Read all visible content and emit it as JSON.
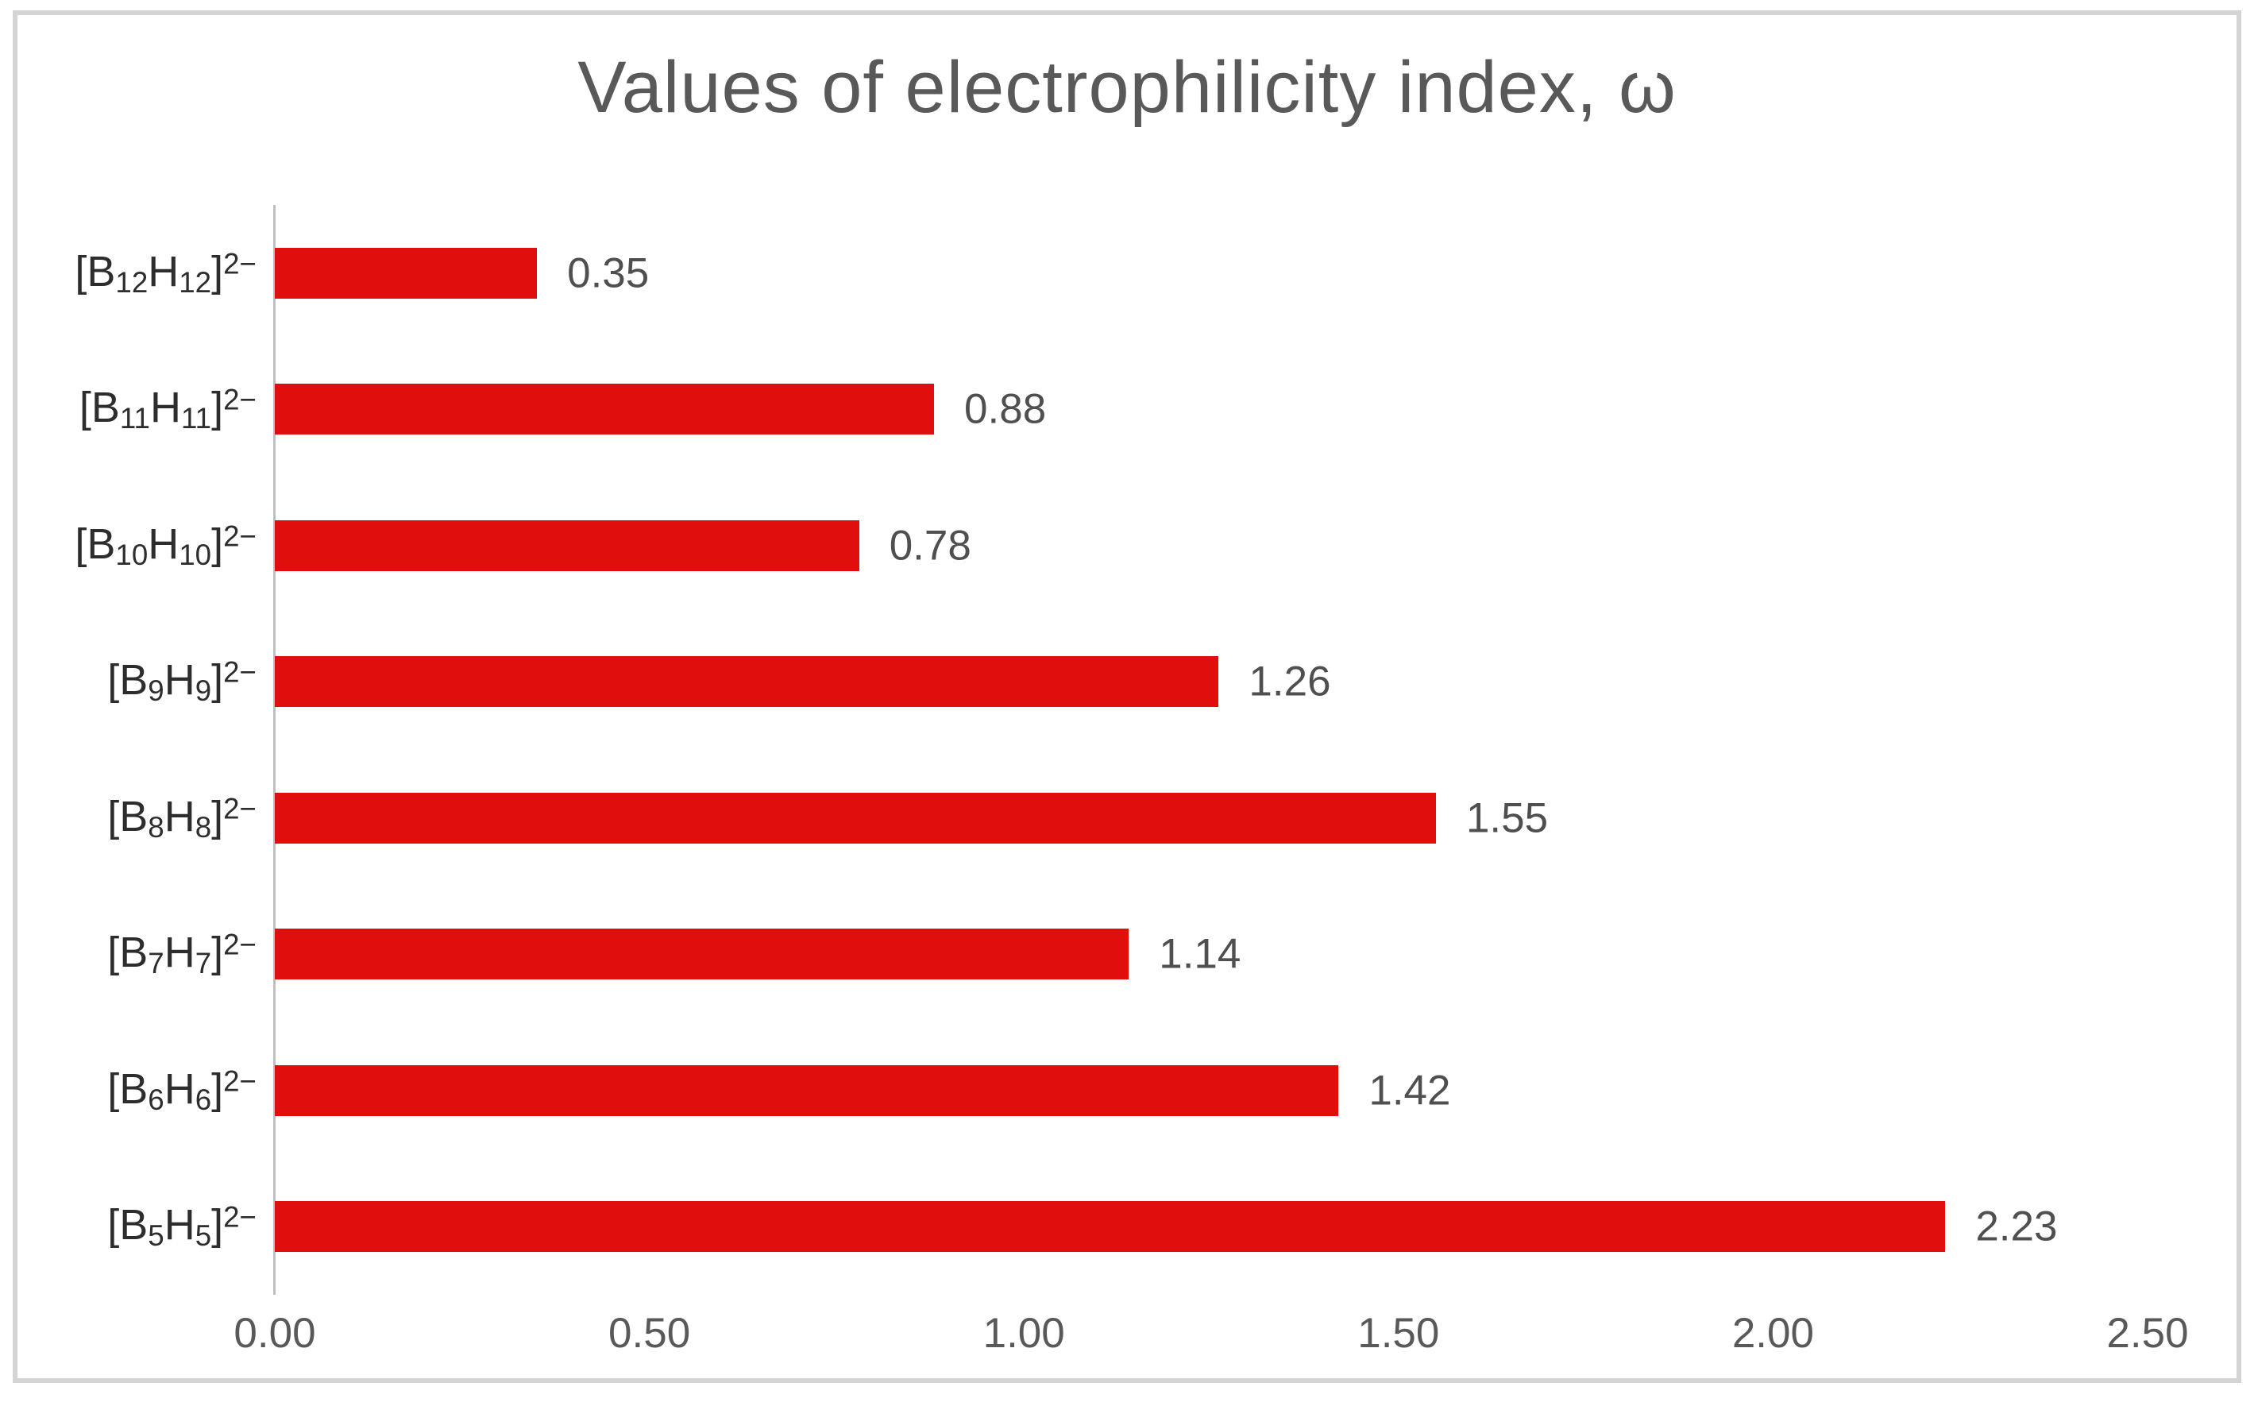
{
  "title": "Values of electrophilicity index, ω",
  "colors": {
    "bar": "#e10e0e",
    "title_text": "#595959",
    "axis_line": "#bfbfbf",
    "tick_text": "#595959",
    "category_text": "#2d2d2d",
    "value_label_text": "#4f4f4f",
    "frame_border": "#d4d4d4",
    "background": "#ffffff"
  },
  "category_format": {
    "open_bracket_element": "[B",
    "middle_element": "H",
    "close_bracket": "]",
    "charge_superscript": "2−"
  },
  "chart_data": {
    "type": "bar",
    "orientation": "horizontal",
    "title": "Values of electrophilicity index, ω",
    "categories": [
      "[B12H12]2−",
      "[B11H11]2−",
      "[B10H10]2−",
      "[B9H9]2−",
      "[B8H8]2−",
      "[B7H7]2−",
      "[B6H6]2−",
      "[B5H5]2−"
    ],
    "category_subscripts": [
      "12",
      "11",
      "10",
      "9",
      "8",
      "7",
      "6",
      "5"
    ],
    "values": [
      0.35,
      0.88,
      0.78,
      1.26,
      1.55,
      1.14,
      1.42,
      2.23
    ],
    "value_labels": [
      "0.35",
      "0.88",
      "0.78",
      "1.26",
      "1.55",
      "1.14",
      "1.42",
      "2.23"
    ],
    "x_ticks": [
      "0.00",
      "0.50",
      "1.00",
      "1.50",
      "2.00",
      "2.50"
    ],
    "x_tick_values": [
      0,
      0.5,
      1,
      1.5,
      2,
      2.5
    ],
    "xlim": [
      0,
      2.5
    ],
    "xlabel": "",
    "ylabel": "",
    "grid": false,
    "legend": false,
    "data_labels_shown": true
  }
}
